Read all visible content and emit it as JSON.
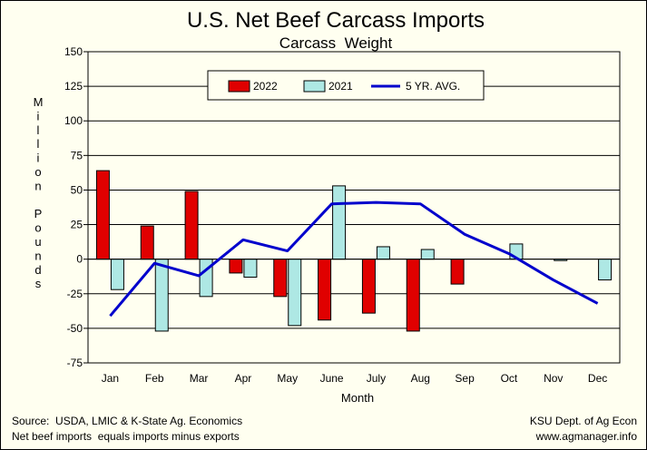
{
  "chart_data": {
    "type": "bar",
    "title": "U.S. Net Beef Carcass Imports",
    "subtitle": "Carcass  Weight",
    "xlabel": "Month",
    "ylabel": "Million Pounds",
    "ylim": [
      -75,
      150
    ],
    "yticks": [
      "150",
      "125",
      "100",
      "75",
      "50",
      "25",
      "0",
      "-25",
      "-50",
      "-75"
    ],
    "ytick_values": [
      150,
      125,
      100,
      75,
      50,
      25,
      0,
      -25,
      -50,
      -75
    ],
    "grid": true,
    "legend_position": "top",
    "categories": [
      "Jan",
      "Feb",
      "Mar",
      "Apr",
      "May",
      "June",
      "July",
      "Aug",
      "Sep",
      "Oct",
      "Nov",
      "Dec"
    ],
    "series": [
      {
        "name": "2022",
        "kind": "bar",
        "color": "#e00000",
        "values": [
          64,
          24,
          49,
          -10,
          -27,
          -44,
          -39,
          -52,
          -18,
          null,
          null,
          null
        ]
      },
      {
        "name": "2021",
        "kind": "bar",
        "color": "#aee8e4",
        "values": [
          -22,
          -52,
          -27,
          -13,
          -48,
          53,
          9,
          7,
          null,
          11,
          -1,
          -15
        ]
      },
      {
        "name": "5 YR. AVG.",
        "kind": "line",
        "color": "#0000cc",
        "values": [
          -41,
          -3,
          -12,
          14,
          6,
          40,
          41,
          40,
          18,
          4,
          -15,
          -32
        ]
      }
    ]
  },
  "footer": {
    "source_line1": "Source:  USDA, LMIC & K-State Ag. Economics",
    "source_line2": "Net beef imports  equals imports minus exports",
    "credit_line1": "KSU Dept. of Ag Econ",
    "credit_line2": "www.agmanager.info"
  }
}
